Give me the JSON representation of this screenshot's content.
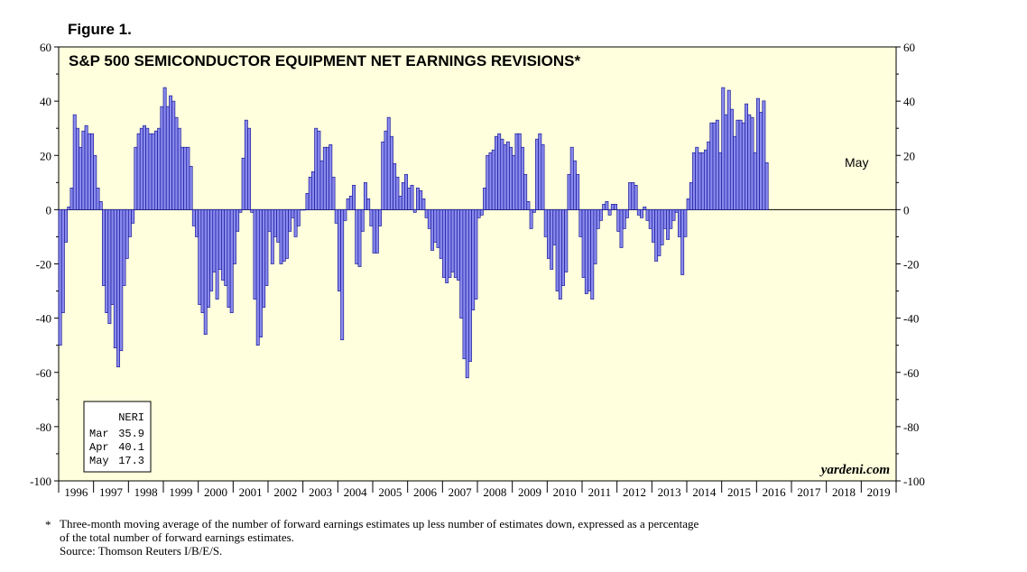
{
  "figure_label": "Figure 1.",
  "footnote": {
    "marker": "*",
    "line1": "Three-month moving average of the number of forward earnings estimates up less number of estimates down, expressed as a percentage",
    "line2": "of the total number of forward earnings estimates.",
    "source": "Source: Thomson Reuters I/B/E/S."
  },
  "chart_data": {
    "type": "bar",
    "title": "S&P 500 SEMICONDUCTOR EQUIPMENT NET EARNINGS REVISIONS*",
    "xlabel": "",
    "ylabel": "",
    "ylim": [
      -100,
      60
    ],
    "yticks": [
      -100,
      -80,
      -60,
      -40,
      -20,
      0,
      20,
      40,
      60
    ],
    "ytick_labels": [
      "-100",
      "-80",
      "-60",
      "-40",
      "-20",
      "0",
      "20",
      "40",
      "60"
    ],
    "years": [
      "1996",
      "1997",
      "1998",
      "1999",
      "2000",
      "2001",
      "2002",
      "2003",
      "2004",
      "2005",
      "2006",
      "2007",
      "2008",
      "2009",
      "2010",
      "2011",
      "2012",
      "2013",
      "2014",
      "2015",
      "2016",
      "2017",
      "2018",
      "2019"
    ],
    "start": "1996-01",
    "frequency": "monthly",
    "values": [
      -50,
      -38,
      -12,
      1,
      8,
      35,
      30,
      23,
      29,
      31,
      28,
      28,
      20,
      8,
      3,
      -28,
      -38,
      -42,
      -35,
      -51,
      -58,
      -52,
      -28,
      -18,
      -10,
      -5,
      23,
      28,
      30,
      31,
      30,
      28,
      28,
      29,
      30,
      38,
      45,
      38,
      42,
      40,
      34,
      30,
      23,
      23,
      23,
      16,
      -6,
      -10,
      -35,
      -38,
      -46,
      -36,
      -30,
      -23,
      -33,
      -22,
      -26,
      -28,
      -36,
      -38,
      -20,
      -8,
      -1,
      19,
      33,
      30,
      -1,
      -33,
      -50,
      -47,
      -36,
      -28,
      -8,
      -20,
      -10,
      -12,
      -20,
      -19,
      -18,
      -8,
      -3,
      -10,
      -6,
      0,
      0,
      6,
      12,
      14,
      30,
      29,
      18,
      23,
      23,
      24,
      12,
      -5,
      -30,
      -48,
      -4,
      4,
      5,
      9,
      -20,
      -21,
      -8,
      10,
      4,
      -6,
      -16,
      -16,
      -6,
      25,
      29,
      34,
      27,
      17,
      12,
      5,
      10,
      13,
      8,
      9,
      -1,
      8,
      7,
      4,
      -3,
      -7,
      -15,
      -12,
      -14,
      -18,
      -25,
      -27,
      -25,
      -23,
      -25,
      -26,
      -40,
      -55,
      -62,
      -56,
      -37,
      -33,
      -3,
      -2,
      8,
      20,
      21,
      22,
      27,
      28,
      26,
      24,
      25,
      23,
      20,
      28,
      28,
      23,
      13,
      3,
      -7,
      -1,
      26,
      28,
      24,
      -10,
      -18,
      -22,
      -13,
      -30,
      -33,
      -28,
      -23,
      13,
      23,
      18,
      13,
      -10,
      -25,
      -31,
      -30,
      -33,
      -20,
      -7,
      -4,
      2,
      3,
      -2,
      2,
      2,
      -8,
      -14,
      -7,
      -3,
      10,
      10,
      9,
      -2,
      -3,
      1,
      -4,
      -7,
      -12,
      -19,
      -17,
      -13,
      -7,
      -11,
      -7,
      -4,
      -1,
      -10,
      -24,
      -10,
      4,
      10,
      21,
      23,
      21,
      21,
      22,
      25,
      32,
      32,
      33,
      21,
      45,
      35,
      44,
      37,
      27,
      33,
      33,
      32,
      39,
      35,
      34,
      21,
      41,
      35.9,
      40.1,
      17.3
    ],
    "last_label": "May",
    "legend_box": {
      "header": "NERI",
      "rows": [
        {
          "label": "Mar",
          "value": "35.9"
        },
        {
          "label": "Apr",
          "value": "40.1"
        },
        {
          "label": "May",
          "value": "17.3"
        }
      ]
    },
    "watermark": "yardeni.com",
    "bar_color": "#8a8aee",
    "bar_edge_color": "#1a1a9a",
    "plot_bg": "#ffffdd"
  }
}
